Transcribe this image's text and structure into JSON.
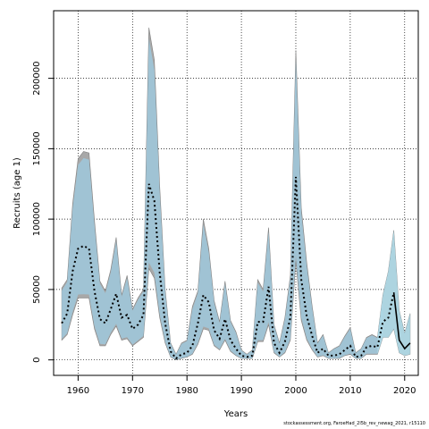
{
  "chart_data": {
    "type": "line",
    "title": "",
    "xlabel": "Years",
    "ylabel": "Recruits (age 1)",
    "xlim": [
      1955.5,
      2022.5
    ],
    "ylim": [
      -11000,
      248000
    ],
    "x_ticks": [
      1960,
      1970,
      1980,
      1990,
      2000,
      2010,
      2020
    ],
    "x_tick_labels": [
      "1960",
      "1970",
      "1980",
      "1990",
      "2000",
      "2010",
      "2020"
    ],
    "y_ticks": [
      0,
      50000,
      100000,
      150000,
      200000
    ],
    "y_tick_labels": [
      "0",
      "50000",
      "100000",
      "150000",
      "200000"
    ],
    "grid": true,
    "colors": {
      "historical_band": "#9fc4d6",
      "historical_band_outer": "#a8a8a8",
      "recent_band": "#add8e6",
      "median_line": "#000000"
    },
    "series": [
      {
        "x": [
          1957,
          1958,
          1959,
          1960,
          1961,
          1962,
          1963,
          1964,
          1965,
          1966,
          1967,
          1968,
          1969,
          1970,
          1971,
          1972,
          1973,
          1974,
          1975,
          1976,
          1977,
          1978,
          1979,
          1980,
          1981,
          1982,
          1983,
          1984,
          1985,
          1986,
          1987,
          1988,
          1989,
          1990,
          1991,
          1992,
          1993,
          1994,
          1995,
          1996,
          1997,
          1998,
          1999,
          2000,
          2001,
          2002,
          2003,
          2004,
          2005,
          2006,
          2007,
          2008,
          2009,
          2010,
          2011,
          2012,
          2013,
          2014,
          2015,
          2016,
          2017,
          2018,
          2019,
          2020,
          2021
        ],
        "median": [
          26000,
          33000,
          63000,
          79000,
          81000,
          79000,
          49000,
          29000,
          26000,
          36000,
          47000,
          30000,
          32000,
          22000,
          25000,
          32000,
          125000,
          113000,
          62000,
          26000,
          6000,
          1000,
          4000,
          5000,
          10000,
          26000,
          46000,
          41000,
          21000,
          15000,
          29000,
          14000,
          8000,
          3000,
          2000,
          3000,
          27000,
          27000,
          52000,
          12000,
          5000,
          13000,
          30000,
          130000,
          57000,
          31000,
          17000,
          5000,
          8000,
          3000,
          3000,
          4000,
          7000,
          10000,
          2000,
          3000,
          9000,
          10000,
          9000,
          27000,
          30000,
          48000,
          14000,
          8000,
          12000
        ],
        "lower": [
          14000,
          18000,
          32000,
          44000,
          44000,
          44000,
          22000,
          10000,
          10000,
          18000,
          24000,
          14000,
          15000,
          10000,
          13000,
          16000,
          65000,
          58000,
          30000,
          12000,
          2000,
          0,
          1000,
          2000,
          4000,
          11000,
          22000,
          21000,
          10000,
          7000,
          14000,
          6000,
          3000,
          1000,
          1000,
          1000,
          13000,
          13000,
          25000,
          5000,
          2000,
          5000,
          14000,
          70000,
          28000,
          14000,
          7000,
          2000,
          3000,
          1000,
          1000,
          1000,
          3000,
          4000,
          1000,
          1000,
          4000,
          4000,
          4000,
          16000,
          16000,
          22000,
          5000,
          3000,
          4000
        ],
        "upper": [
          51000,
          57000,
          111000,
          143000,
          148000,
          147000,
          99000,
          56000,
          49000,
          64000,
          87000,
          46000,
          60000,
          36000,
          44000,
          50000,
          236000,
          213000,
          123000,
          50000,
          12000,
          4000,
          12000,
          14000,
          38000,
          49000,
          100000,
          79000,
          42000,
          27000,
          56000,
          28000,
          20000,
          7000,
          4000,
          7000,
          57000,
          50000,
          94000,
          25000,
          12000,
          30000,
          60000,
          220000,
          108000,
          69000,
          38000,
          12000,
          18000,
          5000,
          8000,
          10000,
          17000,
          23000,
          5000,
          8000,
          16000,
          18000,
          16000,
          46000,
          63000,
          92000,
          35000,
          19000,
          33000
        ]
      }
    ]
  },
  "credit": "stockassessment.org, FaroeHad_2l5b_rev_newag_2021, r15110"
}
